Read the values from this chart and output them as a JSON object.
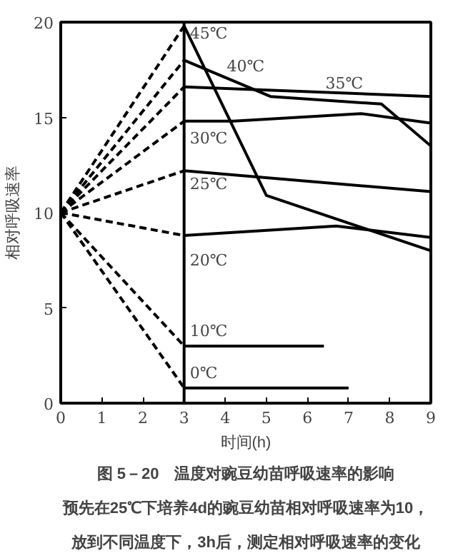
{
  "chart_data": {
    "type": "line",
    "xlabel": "时间(h)",
    "ylabel": "相对呼吸速率",
    "xlim": [
      0,
      9
    ],
    "ylim": [
      0,
      20
    ],
    "xticks": [
      0,
      1,
      2,
      3,
      4,
      5,
      6,
      7,
      8,
      9
    ],
    "yticks": [
      0,
      5,
      10,
      15,
      20
    ],
    "grid": false,
    "marker": "none",
    "ref_lines": [
      {
        "axis": "x",
        "value": 3,
        "color": "#000000"
      }
    ],
    "series": [
      {
        "color": "#000000",
        "line_style": "dashed",
        "x": [
          0,
          3
        ],
        "values": [
          10,
          19.8
        ]
      },
      {
        "color": "#000000",
        "line_style": "dashed",
        "x": [
          0,
          3
        ],
        "values": [
          10,
          18.0
        ]
      },
      {
        "color": "#000000",
        "line_style": "dashed",
        "x": [
          0,
          3
        ],
        "values": [
          10,
          16.6
        ]
      },
      {
        "color": "#000000",
        "line_style": "dashed",
        "x": [
          0,
          3
        ],
        "values": [
          10,
          14.8
        ]
      },
      {
        "color": "#000000",
        "line_style": "dashed",
        "x": [
          0,
          3
        ],
        "values": [
          10,
          12.2
        ]
      },
      {
        "color": "#000000",
        "line_style": "dashed",
        "x": [
          0,
          3
        ],
        "values": [
          10,
          8.8
        ]
      },
      {
        "color": "#000000",
        "line_style": "dashed",
        "x": [
          0,
          3
        ],
        "values": [
          10,
          3.0
        ]
      },
      {
        "color": "#000000",
        "line_style": "dashed",
        "x": [
          0,
          3
        ],
        "values": [
          10,
          0.8
        ]
      },
      {
        "color": "#000000",
        "line_style": "solid",
        "x": [
          3,
          5,
          9
        ],
        "values": [
          19.8,
          10.9,
          8.0
        ]
      },
      {
        "color": "#000000",
        "line_style": "solid",
        "x": [
          3,
          5.1,
          7.8,
          9
        ],
        "values": [
          18.0,
          16.1,
          15.7,
          13.5
        ]
      },
      {
        "color": "#000000",
        "line_style": "solid",
        "x": [
          3,
          9
        ],
        "values": [
          16.6,
          16.1
        ]
      },
      {
        "color": "#000000",
        "line_style": "solid",
        "x": [
          3,
          4.2,
          7.3,
          9
        ],
        "values": [
          14.8,
          14.8,
          15.2,
          14.7
        ]
      },
      {
        "color": "#000000",
        "line_style": "solid",
        "x": [
          3,
          9
        ],
        "values": [
          12.2,
          11.1
        ]
      },
      {
        "color": "#000000",
        "line_style": "solid",
        "x": [
          3,
          6.7,
          9
        ],
        "values": [
          8.8,
          9.3,
          8.7
        ]
      },
      {
        "color": "#000000",
        "line_style": "solid",
        "x": [
          3,
          6.4
        ],
        "values": [
          3.0,
          3.0
        ]
      },
      {
        "color": "#000000",
        "line_style": "solid",
        "x": [
          3,
          7
        ],
        "values": [
          0.8,
          0.8
        ]
      }
    ],
    "annotations": [
      {
        "text": "45℃",
        "x": 3,
        "y": 18.9
      },
      {
        "text": "40℃",
        "x": 3.9,
        "y": 17.2
      },
      {
        "text": "35℃",
        "x": 6.3,
        "y": 16.3
      },
      {
        "text": "30℃",
        "x": 3,
        "y": 13.4
      },
      {
        "text": "25℃",
        "x": 3,
        "y": 11.0
      },
      {
        "text": "20℃",
        "x": 3,
        "y": 7.0
      },
      {
        "text": "10℃",
        "x": 3,
        "y": 3.3
      },
      {
        "text": "0℃",
        "x": 3,
        "y": 1.1
      },
      "图 5－20　温度对豌豆幼苗呼吸速率的影响",
      "预先在25℃下培养4d的豌豆幼苗相对呼吸速率为10，",
      "放到不同温度下，3h后，测定相对呼吸速率的变化"
    ]
  }
}
